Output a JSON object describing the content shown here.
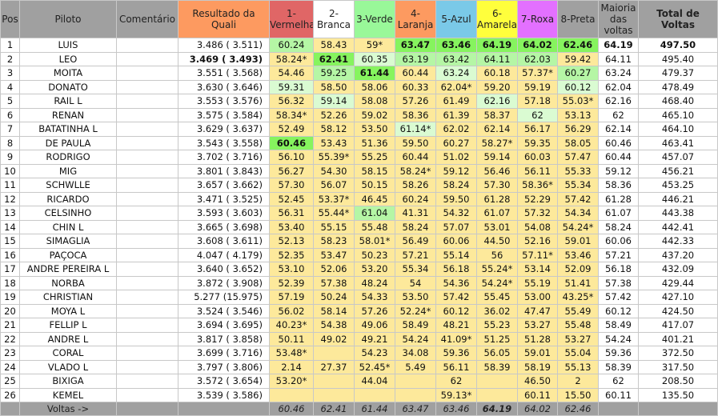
{
  "header": {
    "columns": [
      "Pos",
      "Piloto",
      "Comentário",
      "Resultado da Quali",
      "1-Vermelha",
      "2-Branca",
      "3-Verde",
      "4-Laranja",
      "5-Azul",
      "6-Amarela",
      "7-Roxa",
      "8-Preta",
      "Maioria das voltas",
      "Total de Voltas"
    ],
    "colors": [
      "#a0a0a0",
      "#a0a0a0",
      "#a0a0a0",
      "#fd9a60",
      "#e06666",
      "#ffffff",
      "#99f899",
      "#fd9a60",
      "#7ac9e8",
      "#ffff3c",
      "#e370ff",
      "#a0a0a0",
      "#a0a0a0",
      "#a0a0a0"
    ]
  },
  "legend_colors": {
    "best": "#86f45e",
    "second": "#b5f6a5",
    "third": "#dafbd2",
    "other": "#fde99b"
  },
  "rows": [
    {
      "pos": "1",
      "name": "LUIS",
      "comment": "",
      "quali": "3.486 ( 3.511)",
      "laps": [
        "60.24",
        "58.43",
        "59*",
        "63.47",
        "63.46",
        "64.19",
        "64.02",
        "62.46"
      ],
      "cls": "g2 y y g1 g1 g1 g1 g1",
      "maioria": "64.19",
      "total": "497.50",
      "bold_total": true
    },
    {
      "pos": "2",
      "name": "LEO",
      "comment": "",
      "quali": "3.469 ( 3.493)",
      "bold_quali": true,
      "laps": [
        "58.24*",
        "62.41",
        "60.35",
        "63.19",
        "63.42",
        "64.11",
        "62.03",
        "59.42"
      ],
      "cls": "y g1 g3 g2 g2 g2 g2 y",
      "maioria": "64.11",
      "total": "495.40"
    },
    {
      "pos": "3",
      "name": "MOITA",
      "comment": "",
      "quali": "3.551 ( 3.568)",
      "laps": [
        "54.46",
        "59.25",
        "61.44",
        "60.44",
        "63.24",
        "60.18",
        "57.37*",
        "60.27"
      ],
      "cls": "y g2 g1 y g3 y y g2",
      "maioria": "63.24",
      "total": "479.37"
    },
    {
      "pos": "4",
      "name": "DONATO",
      "comment": "",
      "quali": "3.630 ( 3.646)",
      "laps": [
        "59.31",
        "58.50",
        "58.06",
        "60.33",
        "62.04*",
        "59.20",
        "59.19",
        "60.12"
      ],
      "cls": "g3 y y y y y y g3",
      "maioria": "62.04",
      "total": "478.49"
    },
    {
      "pos": "5",
      "name": "RAIL L",
      "comment": "",
      "quali": "3.553 ( 3.576)",
      "laps": [
        "56.32",
        "59.14",
        "58.08",
        "57.26",
        "61.49",
        "62.16",
        "57.18",
        "55.03*"
      ],
      "cls": "y g3 y y y g3 y y",
      "maioria": "62.16",
      "total": "468.40"
    },
    {
      "pos": "6",
      "name": "RENAN",
      "comment": "",
      "quali": "3.575 ( 3.584)",
      "laps": [
        "58.34*",
        "52.26",
        "59.02",
        "58.36",
        "61.39",
        "58.37",
        "62",
        "53.13"
      ],
      "cls": "y y y y y y g3 y",
      "maioria": "62",
      "total": "465.10"
    },
    {
      "pos": "7",
      "name": "BATATINHA L",
      "comment": "",
      "quali": "3.629 ( 3.637)",
      "laps": [
        "52.49",
        "58.12",
        "53.50",
        "61.14*",
        "62.02",
        "62.14",
        "56.17",
        "56.29"
      ],
      "cls": "y y y g3 y y y y",
      "maioria": "62.14",
      "total": "464.10"
    },
    {
      "pos": "8",
      "name": "DE PAULA",
      "comment": "",
      "quali": "3.543 ( 3.558)",
      "laps": [
        "60.46",
        "53.43",
        "51.36",
        "59.50",
        "60.27",
        "58.27*",
        "59.35",
        "58.05"
      ],
      "cls": "g1 y y y y y y y",
      "maioria": "60.46",
      "total": "463.41"
    },
    {
      "pos": "9",
      "name": "RODRIGO",
      "comment": "",
      "quali": "3.702 ( 3.716)",
      "laps": [
        "56.10",
        "55.39*",
        "55.25",
        "60.44",
        "51.02",
        "59.14",
        "60.03",
        "57.47"
      ],
      "cls": "y y y y y y y y",
      "maioria": "60.44",
      "total": "457.07"
    },
    {
      "pos": "10",
      "name": "MIG",
      "comment": "",
      "quali": "3.801 ( 3.843)",
      "laps": [
        "56.27",
        "54.30",
        "58.15",
        "58.24*",
        "59.12",
        "56.46",
        "56.11",
        "55.33"
      ],
      "cls": "y y y y y y y y",
      "maioria": "59.12",
      "total": "456.21"
    },
    {
      "pos": "11",
      "name": "SCHWLLE",
      "comment": "",
      "quali": "3.657 ( 3.662)",
      "laps": [
        "57.30",
        "56.07",
        "50.15",
        "58.26",
        "58.24",
        "57.30",
        "58.36*",
        "55.34"
      ],
      "cls": "y y y y y y y y",
      "maioria": "58.36",
      "total": "453.25"
    },
    {
      "pos": "12",
      "name": "RICARDO",
      "comment": "",
      "quali": "3.471 ( 3.525)",
      "laps": [
        "52.45",
        "53.37*",
        "46.45",
        "60.24",
        "59.50",
        "61.28",
        "52.29",
        "57.42"
      ],
      "cls": "y y y y y y y y",
      "maioria": "61.28",
      "total": "446.21"
    },
    {
      "pos": "13",
      "name": "CELSINHO",
      "comment": "",
      "quali": "3.593 ( 3.603)",
      "laps": [
        "56.31",
        "55.44*",
        "61.04",
        "41.31",
        "54.32",
        "61.07",
        "57.32",
        "54.34"
      ],
      "cls": "y y g2 y y y y y",
      "maioria": "61.07",
      "total": "443.38"
    },
    {
      "pos": "14",
      "name": "CHIN L",
      "comment": "",
      "quali": "3.665 ( 3.698)",
      "laps": [
        "53.40",
        "55.15",
        "55.48",
        "58.24",
        "57.07",
        "53.01",
        "54.08",
        "54.24*"
      ],
      "cls": "y y y y y y y y",
      "maioria": "58.24",
      "total": "442.41"
    },
    {
      "pos": "15",
      "name": "SIMAGLIA",
      "comment": "",
      "quali": "3.608 ( 3.611)",
      "laps": [
        "52.13",
        "58.23",
        "58.01*",
        "56.49",
        "60.06",
        "44.50",
        "52.16",
        "59.01"
      ],
      "cls": "y y y y y y y y",
      "maioria": "60.06",
      "total": "442.33"
    },
    {
      "pos": "16",
      "name": "PAÇOCA",
      "comment": "",
      "quali": "4.047 ( 4.179)",
      "laps": [
        "52.35",
        "53.47",
        "50.23",
        "57.21",
        "55.14",
        "56",
        "57.11*",
        "53.46"
      ],
      "cls": "y y y y y y y y",
      "maioria": "57.21",
      "total": "437.20"
    },
    {
      "pos": "17",
      "name": "ANDRE PEREIRA L",
      "comment": "",
      "quali": "3.640 ( 3.652)",
      "laps": [
        "53.10",
        "52.06",
        "53.20",
        "55.34",
        "56.18",
        "55.24*",
        "53.14",
        "52.09"
      ],
      "cls": "y y y y y y y y",
      "maioria": "56.18",
      "total": "432.09"
    },
    {
      "pos": "18",
      "name": "NORBA",
      "comment": "",
      "quali": "3.872 ( 3.908)",
      "laps": [
        "52.39",
        "57.38",
        "48.24",
        "54",
        "54.36",
        "54.24*",
        "55.19",
        "51.41"
      ],
      "cls": "y y y y y y y y",
      "maioria": "57.38",
      "total": "429.44"
    },
    {
      "pos": "19",
      "name": "CHRISTIAN",
      "comment": "",
      "quali": "5.277 (15.975)",
      "laps": [
        "57.19",
        "50.24",
        "54.33",
        "53.50",
        "57.42",
        "55.45",
        "53.00",
        "43.25*"
      ],
      "cls": "y y y y y y y y",
      "maioria": "57.42",
      "total": "427.10"
    },
    {
      "pos": "20",
      "name": "MOYA L",
      "comment": "",
      "quali": "3.524 ( 3.546)",
      "laps": [
        "56.02",
        "58.14",
        "57.26",
        "52.24*",
        "60.12",
        "36.02",
        "47.47",
        "55.49"
      ],
      "cls": "y y y y y y y y",
      "maioria": "60.12",
      "total": "424.50"
    },
    {
      "pos": "21",
      "name": "FELLIP L",
      "comment": "",
      "quali": "3.694 ( 3.695)",
      "laps": [
        "40.23*",
        "54.38",
        "49.06",
        "58.49",
        "48.21",
        "55.23",
        "53.27",
        "55.48"
      ],
      "cls": "y y y y y y y y",
      "maioria": "58.49",
      "total": "417.07"
    },
    {
      "pos": "22",
      "name": "ANDRE L",
      "comment": "",
      "quali": "3.817 ( 3.858)",
      "laps": [
        "50.11",
        "49.02",
        "49.21",
        "54.24",
        "41.09*",
        "51.25",
        "51.28",
        "53.27"
      ],
      "cls": "y y y y y y y y",
      "maioria": "54.24",
      "total": "401.21"
    },
    {
      "pos": "23",
      "name": "CORAL",
      "comment": "",
      "quali": "3.699 ( 3.716)",
      "laps": [
        "53.48*",
        "",
        "54.23",
        "34.08",
        "59.36",
        "56.05",
        "59.01",
        "55.04"
      ],
      "cls": "y y y y y y y y",
      "maioria": "59.36",
      "total": "372.50"
    },
    {
      "pos": "24",
      "name": "VLADO L",
      "comment": "",
      "quali": "3.797 ( 3.806)",
      "laps": [
        "2.14",
        "27.37",
        "52.45*",
        "5.49",
        "56.11",
        "58.39",
        "58.19",
        "55.13"
      ],
      "cls": "y y y y y y y y",
      "maioria": "58.39",
      "total": "317.50"
    },
    {
      "pos": "25",
      "name": "BIXIGA",
      "comment": "",
      "quali": "3.572 ( 3.654)",
      "laps": [
        "53.20*",
        "",
        "44.04",
        "",
        "62",
        "",
        "46.50",
        "2"
      ],
      "cls": "y y y y y y y y",
      "maioria": "62",
      "total": "208.50"
    },
    {
      "pos": "26",
      "name": "KEMEL",
      "comment": "",
      "quali": "3.539 ( 3.586)",
      "laps": [
        "",
        "",
        "",
        "",
        "59.13*",
        "",
        "60.11",
        "15.50"
      ],
      "cls": "y y y y y y y y",
      "maioria": "60.11",
      "total": "135.50"
    }
  ],
  "footer": {
    "label": "Voltas ->",
    "best_laps": [
      "60.46",
      "62.41",
      "61.44",
      "63.47",
      "63.46",
      "64.19",
      "64.02",
      "62.46"
    ],
    "overall_best_index": 5
  }
}
